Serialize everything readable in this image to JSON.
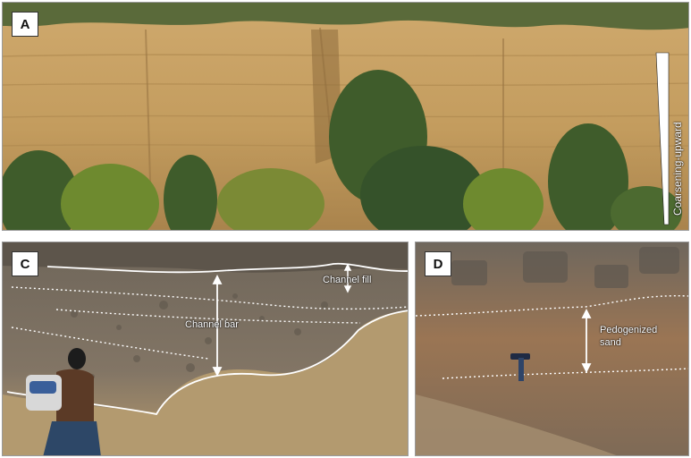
{
  "panels": {
    "a": {
      "badge": "A",
      "vertical_label": "Coarsening-upward"
    },
    "c": {
      "badge": "C",
      "labels": {
        "channel_fill": "Channel fill",
        "channel_bar": "Channel bar"
      }
    },
    "d": {
      "badge": "D",
      "labels": {
        "pedogenized_line1": "Pedogenized",
        "pedogenized_line2": "sand"
      }
    }
  },
  "colors": {
    "cliff": "#c9a467",
    "vegetation": "#3d5a2c",
    "outcrop_c": "#7d7263",
    "outcrop_d": "#8c6f52",
    "annotation": "#ffffff"
  }
}
